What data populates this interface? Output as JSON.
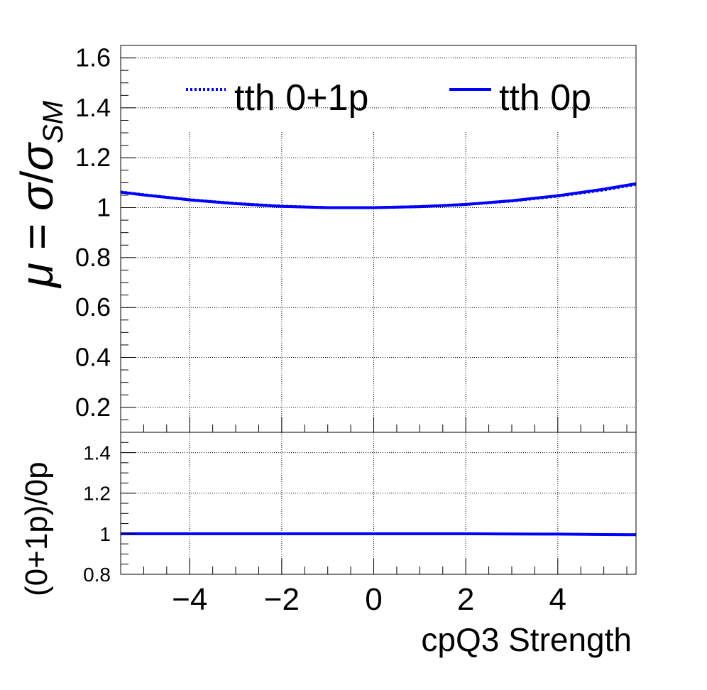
{
  "chart_data": [
    {
      "panel": "main",
      "type": "line",
      "ylabel": "μ = σ/σ_SM",
      "ylabel_parts": {
        "mu": "μ",
        "eq": " = ",
        "sigma": "σ",
        "slash": "/",
        "sigma2": "σ",
        "sub": "SM"
      },
      "xlim": [
        -5.5,
        5.7
      ],
      "ylim": [
        0.1,
        1.65
      ],
      "yticks": [
        0.2,
        0.4,
        0.6,
        0.8,
        1,
        1.2,
        1.4,
        1.6
      ],
      "ytick_labels": [
        "0.2",
        "0.4",
        "0.6",
        "0.8",
        "1",
        "1.2",
        "1.4",
        "1.6"
      ],
      "grid": true,
      "legend_position": "top",
      "series": [
        {
          "name": "tth 0+1p",
          "style": "dotted",
          "color": "#0000ff",
          "x": [
            -5.5,
            -5,
            -4,
            -3,
            -2,
            -1,
            0,
            1,
            2,
            3,
            4,
            5,
            5.7
          ],
          "y": [
            1.063,
            1.052,
            1.032,
            1.017,
            1.006,
            1.0,
            1.0,
            1.004,
            1.013,
            1.027,
            1.046,
            1.071,
            1.093
          ]
        },
        {
          "name": "tth 0p",
          "style": "solid",
          "color": "#0000ff",
          "x": [
            -5.5,
            -5,
            -4,
            -3,
            -2,
            -1,
            0,
            1,
            2,
            3,
            4,
            5,
            5.7
          ],
          "y": [
            1.062,
            1.051,
            1.031,
            1.016,
            1.005,
            1.0,
            1.0,
            1.004,
            1.013,
            1.028,
            1.048,
            1.074,
            1.096
          ]
        }
      ]
    },
    {
      "panel": "ratio",
      "type": "line",
      "ylabel": "(0+1p)/0p",
      "xlabel": "cpQ3 Strength",
      "xlim": [
        -5.5,
        5.7
      ],
      "ylim": [
        0.8,
        1.5
      ],
      "yticks": [
        0.8,
        1,
        1.2,
        1.4
      ],
      "ytick_labels": [
        "0.8",
        "1",
        "1.2",
        "1.4"
      ],
      "xticks": [
        -4,
        -2,
        0,
        2,
        4
      ],
      "xtick_labels": [
        "−4",
        "−2",
        "0",
        "2",
        "4"
      ],
      "grid": true,
      "series": [
        {
          "style": "solid",
          "color": "#0000ff",
          "x": [
            -5.5,
            -4,
            -2,
            0,
            2,
            2.7,
            4,
            5,
            5.7
          ],
          "y": [
            1.0,
            1.0,
            1.0,
            1.0,
            1.0,
            0.999,
            0.998,
            0.996,
            0.995
          ]
        }
      ]
    }
  ]
}
